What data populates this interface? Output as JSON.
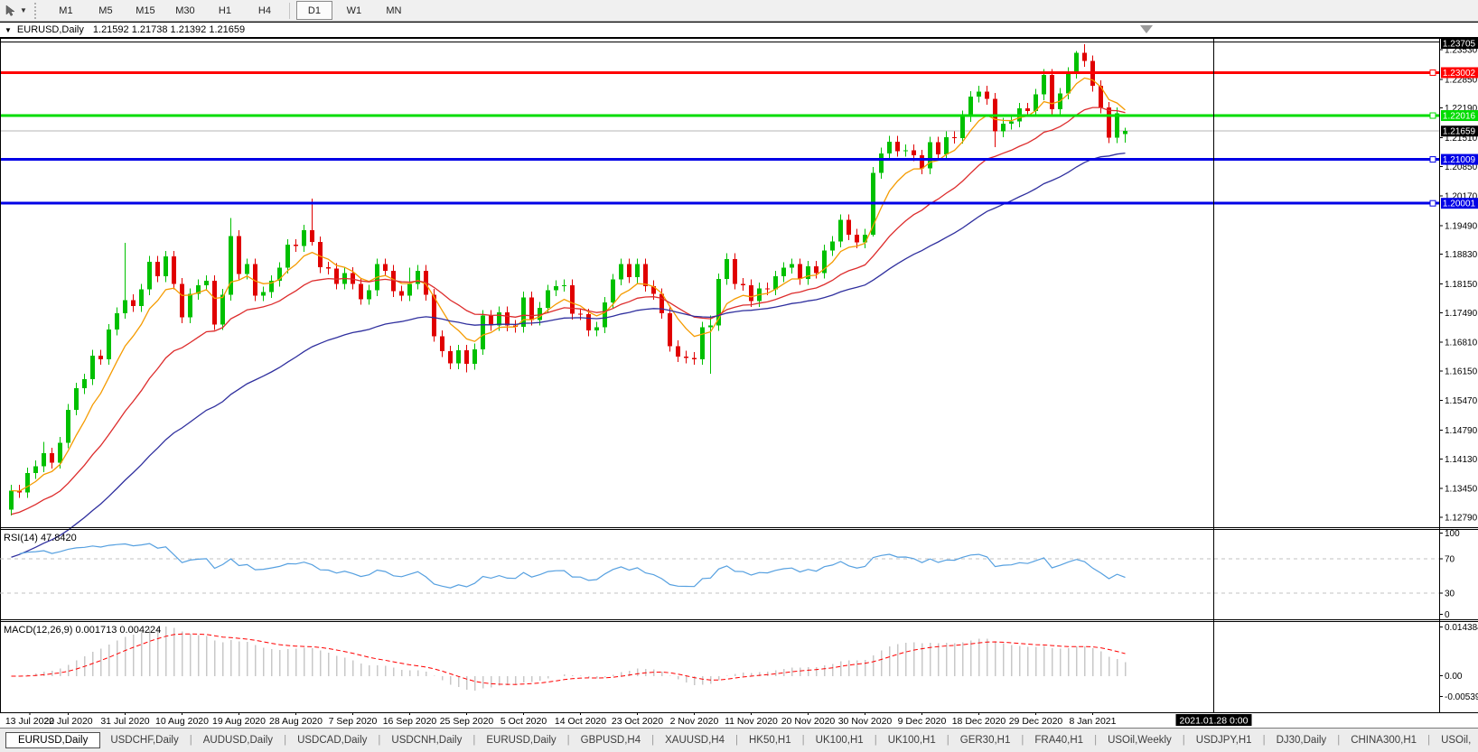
{
  "toolbar": {
    "cursor_tool_icon": "crosshair-cursor-icon",
    "dropdown_icon": "caret-down-icon",
    "timeframes": [
      "M1",
      "M5",
      "M15",
      "M30",
      "H1",
      "H4",
      "D1",
      "W1",
      "MN"
    ],
    "active_timeframe": "D1",
    "separator_before": "D1"
  },
  "chart_header": {
    "collapse_icon": "triangle-down-icon",
    "title": "EURUSD,Daily",
    "ohlc_text": "1.21592 1.21738 1.21392 1.21659"
  },
  "chart_data": {
    "type": "candlestick",
    "symbol": "EURUSD",
    "timeframe": "Daily",
    "open": "1.21592",
    "high": "1.21738",
    "low": "1.21392",
    "close": "1.21659",
    "y_range": {
      "top": 1.238,
      "bottom": 1.1256
    },
    "y_axis_labels": [
      "1.23530",
      "1.22850",
      "1.22190",
      "1.21510",
      "1.20850",
      "1.20170",
      "1.19490",
      "1.18830",
      "1.18150",
      "1.17490",
      "1.16810",
      "1.16150",
      "1.15470",
      "1.14790",
      "1.14130",
      "1.13450",
      "1.12790"
    ],
    "x_tick_labels": [
      "13 Jul 2020",
      "22 Jul 2020",
      "31 Jul 2020",
      "10 Aug 2020",
      "19 Aug 2020",
      "28 Aug 2020",
      "7 Sep 2020",
      "16 Sep 2020",
      "25 Sep 2020",
      "5 Oct 2020",
      "14 Oct 2020",
      "23 Oct 2020",
      "2 Nov 2020",
      "11 Nov 2020",
      "20 Nov 2020",
      "30 Nov 2020",
      "9 Dec 2020",
      "18 Dec 2020",
      "29 Dec 2020",
      "8 Jan 2021"
    ],
    "candles_per_tick": 7,
    "bull_color": "#00C000",
    "bear_color": "#E00000",
    "candles": [
      [
        1.1296,
        1.1353,
        1.1283,
        1.134
      ],
      [
        1.134,
        1.1353,
        1.1323,
        1.1336
      ],
      [
        1.1336,
        1.1393,
        1.1323,
        1.138
      ],
      [
        1.138,
        1.1409,
        1.1367,
        1.1396
      ],
      [
        1.1396,
        1.1452,
        1.1383,
        1.1426
      ],
      [
        1.1426,
        1.1439,
        1.1391,
        1.1404
      ],
      [
        1.1404,
        1.1463,
        1.1391,
        1.145
      ],
      [
        1.145,
        1.1539,
        1.1437,
        1.1526
      ],
      [
        1.1526,
        1.1588,
        1.1513,
        1.1575
      ],
      [
        1.1575,
        1.1609,
        1.1562,
        1.1596
      ],
      [
        1.1596,
        1.1663,
        1.1583,
        1.165
      ],
      [
        1.165,
        1.1663,
        1.1629,
        1.1642
      ],
      [
        1.1642,
        1.1723,
        1.1629,
        1.171
      ],
      [
        1.171,
        1.1761,
        1.1697,
        1.1748
      ],
      [
        1.1748,
        1.1909,
        1.1735,
        1.1778
      ],
      [
        1.1778,
        1.1791,
        1.1751,
        1.1764
      ],
      [
        1.1764,
        1.1815,
        1.1751,
        1.1802
      ],
      [
        1.1802,
        1.1879,
        1.1789,
        1.1866
      ],
      [
        1.1866,
        1.1879,
        1.1819,
        1.1832
      ],
      [
        1.1832,
        1.1891,
        1.1819,
        1.1878
      ],
      [
        1.1878,
        1.1891,
        1.1802,
        1.1815
      ],
      [
        1.1815,
        1.1828,
        1.1725,
        1.1738
      ],
      [
        1.1738,
        1.1805,
        1.1725,
        1.1792
      ],
      [
        1.1792,
        1.1825,
        1.1779,
        1.1812
      ],
      [
        1.1812,
        1.1835,
        1.1799,
        1.1822
      ],
      [
        1.1822,
        1.1835,
        1.1709,
        1.1722
      ],
      [
        1.1722,
        1.1803,
        1.1709,
        1.179
      ],
      [
        1.179,
        1.1966,
        1.1777,
        1.1925
      ],
      [
        1.1925,
        1.1938,
        1.1825,
        1.1838
      ],
      [
        1.1838,
        1.1873,
        1.1825,
        1.186
      ],
      [
        1.186,
        1.1873,
        1.1775,
        1.1788
      ],
      [
        1.1788,
        1.1809,
        1.1775,
        1.1796
      ],
      [
        1.1796,
        1.1835,
        1.1783,
        1.1822
      ],
      [
        1.1822,
        1.1865,
        1.1809,
        1.1852
      ],
      [
        1.1852,
        1.1918,
        1.1839,
        1.1905
      ],
      [
        1.1905,
        1.1918,
        1.1889,
        1.1902
      ],
      [
        1.1902,
        1.1951,
        1.1889,
        1.1938
      ],
      [
        1.1938,
        1.2011,
        1.1903,
        1.1911
      ],
      [
        1.1911,
        1.1924,
        1.184,
        1.1853
      ],
      [
        1.1853,
        1.1866,
        1.1837,
        1.185
      ],
      [
        1.185,
        1.1863,
        1.1802,
        1.1815
      ],
      [
        1.1815,
        1.1853,
        1.1802,
        1.184
      ],
      [
        1.184,
        1.1853,
        1.1802,
        1.1815
      ],
      [
        1.1815,
        1.1828,
        1.1767,
        1.178
      ],
      [
        1.178,
        1.1813,
        1.1767,
        1.18
      ],
      [
        1.18,
        1.1873,
        1.1787,
        1.186
      ],
      [
        1.186,
        1.1873,
        1.1832,
        1.1845
      ],
      [
        1.1845,
        1.1858,
        1.1785,
        1.1798
      ],
      [
        1.1798,
        1.1811,
        1.1775,
        1.1788
      ],
      [
        1.1788,
        1.1852,
        1.1775,
        1.1815
      ],
      [
        1.1815,
        1.1858,
        1.1802,
        1.1845
      ],
      [
        1.1845,
        1.1858,
        1.1777,
        1.179
      ],
      [
        1.179,
        1.1803,
        1.1682,
        1.1695
      ],
      [
        1.1695,
        1.1708,
        1.1647,
        1.166
      ],
      [
        1.166,
        1.1673,
        1.1619,
        1.1632
      ],
      [
        1.1632,
        1.1675,
        1.1619,
        1.1662
      ],
      [
        1.1662,
        1.1675,
        1.1612,
        1.1631
      ],
      [
        1.1631,
        1.1678,
        1.1618,
        1.1665
      ],
      [
        1.1665,
        1.1755,
        1.1652,
        1.1742
      ],
      [
        1.1742,
        1.1755,
        1.1707,
        1.172
      ],
      [
        1.172,
        1.1763,
        1.1707,
        1.175
      ],
      [
        1.175,
        1.1763,
        1.1706,
        1.1719
      ],
      [
        1.1719,
        1.1732,
        1.1703,
        1.1716
      ],
      [
        1.1716,
        1.1797,
        1.1703,
        1.1784
      ],
      [
        1.1784,
        1.1797,
        1.1719,
        1.1732
      ],
      [
        1.1732,
        1.1773,
        1.1719,
        1.176
      ],
      [
        1.176,
        1.1813,
        1.1747,
        1.18
      ],
      [
        1.18,
        1.1823,
        1.1787,
        1.181
      ],
      [
        1.181,
        1.1825,
        1.1797,
        1.1812
      ],
      [
        1.1812,
        1.1825,
        1.1733,
        1.1746
      ],
      [
        1.1746,
        1.1759,
        1.1732,
        1.1745
      ],
      [
        1.1745,
        1.1758,
        1.1695,
        1.1708
      ],
      [
        1.1708,
        1.1728,
        1.1695,
        1.1715
      ],
      [
        1.1715,
        1.1785,
        1.1702,
        1.1772
      ],
      [
        1.1772,
        1.1838,
        1.1759,
        1.1825
      ],
      [
        1.1825,
        1.1873,
        1.1812,
        1.186
      ],
      [
        1.186,
        1.1873,
        1.1817,
        1.183
      ],
      [
        1.183,
        1.1873,
        1.1817,
        1.186
      ],
      [
        1.186,
        1.1873,
        1.1797,
        1.181
      ],
      [
        1.181,
        1.1823,
        1.1779,
        1.1792
      ],
      [
        1.1792,
        1.1805,
        1.1735,
        1.1748
      ],
      [
        1.1748,
        1.1761,
        1.1659,
        1.1672
      ],
      [
        1.1672,
        1.1685,
        1.1635,
        1.1648
      ],
      [
        1.1648,
        1.1661,
        1.1632,
        1.1645
      ],
      [
        1.1645,
        1.1658,
        1.1629,
        1.1642
      ],
      [
        1.1642,
        1.1728,
        1.1629,
        1.1715
      ],
      [
        1.1715,
        1.1742,
        1.1609,
        1.172
      ],
      [
        1.172,
        1.1839,
        1.1707,
        1.1826
      ],
      [
        1.1826,
        1.1885,
        1.1813,
        1.1872
      ],
      [
        1.1872,
        1.1885,
        1.1802,
        1.1815
      ],
      [
        1.1815,
        1.1828,
        1.1799,
        1.1812
      ],
      [
        1.1812,
        1.1825,
        1.1762,
        1.1775
      ],
      [
        1.1775,
        1.1818,
        1.1762,
        1.1805
      ],
      [
        1.1805,
        1.1818,
        1.1789,
        1.1802
      ],
      [
        1.1802,
        1.1845,
        1.1789,
        1.1832
      ],
      [
        1.1832,
        1.1865,
        1.1819,
        1.1852
      ],
      [
        1.1852,
        1.1873,
        1.1839,
        1.186
      ],
      [
        1.186,
        1.1873,
        1.1813,
        1.1826
      ],
      [
        1.1826,
        1.1868,
        1.1813,
        1.1855
      ],
      [
        1.1855,
        1.1868,
        1.1827,
        1.184
      ],
      [
        1.184,
        1.1905,
        1.1827,
        1.1892
      ],
      [
        1.1892,
        1.1925,
        1.1879,
        1.1912
      ],
      [
        1.1912,
        1.1975,
        1.1899,
        1.1962
      ],
      [
        1.1962,
        1.1975,
        1.1915,
        1.1928
      ],
      [
        1.1928,
        1.1941,
        1.1897,
        1.191
      ],
      [
        1.191,
        1.1941,
        1.1897,
        1.1928
      ],
      [
        1.1928,
        1.2083,
        1.1924,
        1.207
      ],
      [
        1.207,
        1.2128,
        1.2057,
        1.2115
      ],
      [
        1.2115,
        1.2155,
        1.2102,
        1.2142
      ],
      [
        1.2142,
        1.2155,
        1.2107,
        1.212
      ],
      [
        1.212,
        1.2135,
        1.2107,
        1.2122
      ],
      [
        1.2122,
        1.2135,
        1.2097,
        1.211
      ],
      [
        1.211,
        1.2123,
        1.2067,
        1.208
      ],
      [
        1.208,
        1.2153,
        1.2067,
        1.214
      ],
      [
        1.214,
        1.2153,
        1.2099,
        1.2112
      ],
      [
        1.2112,
        1.2165,
        1.2099,
        1.2152
      ],
      [
        1.2152,
        1.2165,
        1.2137,
        1.215
      ],
      [
        1.215,
        1.2213,
        1.2137,
        1.22
      ],
      [
        1.22,
        1.2258,
        1.2187,
        1.2245
      ],
      [
        1.2245,
        1.227,
        1.2232,
        1.2257
      ],
      [
        1.2257,
        1.227,
        1.2227,
        1.224
      ],
      [
        1.224,
        1.2253,
        1.2129,
        1.2165
      ],
      [
        1.2165,
        1.2196,
        1.2152,
        1.2183
      ],
      [
        1.2183,
        1.2201,
        1.217,
        1.2188
      ],
      [
        1.2188,
        1.2231,
        1.2175,
        1.2218
      ],
      [
        1.2218,
        1.2231,
        1.2199,
        1.2212
      ],
      [
        1.2212,
        1.2263,
        1.2199,
        1.225
      ],
      [
        1.225,
        1.2308,
        1.2237,
        1.2295
      ],
      [
        1.2295,
        1.2308,
        1.2203,
        1.2216
      ],
      [
        1.2216,
        1.2265,
        1.2203,
        1.2252
      ],
      [
        1.2252,
        1.2313,
        1.2239,
        1.23
      ],
      [
        1.23,
        1.235,
        1.2287,
        1.2346
      ],
      [
        1.2346,
        1.2365,
        1.2314,
        1.2327
      ],
      [
        1.2327,
        1.234,
        1.2257,
        1.227
      ],
      [
        1.227,
        1.2283,
        1.2207,
        1.222
      ],
      [
        1.222,
        1.2233,
        1.2138,
        1.2151
      ],
      [
        1.2151,
        1.222,
        1.2138,
        1.2207
      ],
      [
        1.21592,
        1.21738,
        1.21392,
        1.21659
      ]
    ],
    "moving_averages": [
      {
        "name": "ma-fast",
        "period": 7,
        "seed": null,
        "color": "#F59B00"
      },
      {
        "name": "ma-mid",
        "period": 20,
        "seed": 1.128,
        "color": "#DD2C2C"
      },
      {
        "name": "ma-slow",
        "period": 45,
        "seed": 1.118,
        "color": "#2F2F9E"
      }
    ],
    "horizontal_lines": [
      {
        "price": 1.23705,
        "label": "1.23705",
        "color": "#000000",
        "width": 1,
        "marker": false
      },
      {
        "price": 1.23002,
        "label": "1.23002",
        "color": "#FF0000",
        "width": 3,
        "marker": true
      },
      {
        "price": 1.22016,
        "label": "1.22016",
        "color": "#00DC00",
        "width": 3,
        "marker": true
      },
      {
        "price": 1.21009,
        "label": "1.21009",
        "color": "#0000E6",
        "width": 3,
        "marker": true
      },
      {
        "price": 1.20001,
        "label": "1.20001",
        "color": "#0000E6",
        "width": 3,
        "marker": true
      }
    ],
    "current_price": {
      "value": 1.21659,
      "label": "1.21659",
      "line_color": "#B4B4B4",
      "badge_bg": "#000000"
    },
    "crosshair": {
      "date_label": "2021.01.28 0:00",
      "badge_bg": "#000000"
    },
    "indicators": {
      "rsi": {
        "label": "RSI(14) 47.8420",
        "period": 14,
        "current_value": "47.8420",
        "levels": [
          "100",
          "70",
          "30",
          "0"
        ],
        "dashed_levels": [
          70,
          30
        ],
        "line_color": "#56A0E0",
        "level_color": "#C0C0C0"
      },
      "macd": {
        "label": "MACD(12,26,9) 0.001713 0.004224",
        "fast": 12,
        "slow": 26,
        "signal": 9,
        "macd_value": "0.001713",
        "signal_value": "0.004224",
        "axis_labels": [
          "0.014384",
          "0.00",
          "-0.005398"
        ],
        "bar_color": "#C8C8C8",
        "signal_color": "#FF0000"
      }
    }
  },
  "tab_bar": {
    "tabs": [
      "EURUSD,Daily",
      "USDCHF,Daily",
      "AUDUSD,Daily",
      "USDCAD,Daily",
      "USDCNH,Daily",
      "EURUSD,Daily",
      "GBPUSD,H4",
      "XAUUSD,H4",
      "HK50,H1",
      "UK100,H1",
      "UK100,H1",
      "GER30,H1",
      "FRA40,H1",
      "USOil,Weekly",
      "USDJPY,H1",
      "DJ30,Daily",
      "CHINA300,H1",
      "USOil,"
    ],
    "active_index": 0,
    "scroll_left": "◄",
    "scroll_right": "►"
  }
}
